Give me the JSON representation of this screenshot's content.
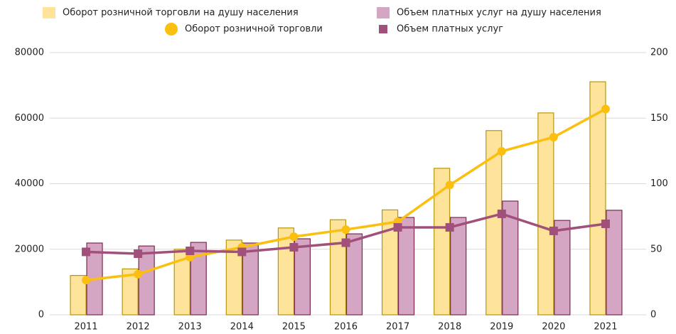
{
  "chart_data": {
    "type": "bar",
    "categories": [
      "2011",
      "2012",
      "2013",
      "2014",
      "2015",
      "2016",
      "2017",
      "2018",
      "2019",
      "2020",
      "2021"
    ],
    "series": [
      {
        "name": "Оборот розничной торговли на душу населения",
        "type": "bar",
        "color": "#fde49a",
        "edge": "#b8960a",
        "values": [
          12000,
          14000,
          20000,
          22800,
          26500,
          29000,
          32000,
          44700,
          56200,
          61600,
          71100
        ]
      },
      {
        "name": "Объем платных услуг на душу населения",
        "type": "bar",
        "color": "#d4a6c4",
        "edge": "#7a2a50",
        "values": [
          21900,
          21000,
          22100,
          21900,
          23200,
          24700,
          29700,
          29700,
          34700,
          28800,
          31900
        ]
      },
      {
        "name": "Оборот розничной торговли",
        "type": "line",
        "marker": "circle",
        "axis": "y2",
        "color": "#fbbf10",
        "values": [
          26.5,
          31,
          44,
          51.5,
          59.6,
          65,
          71,
          99,
          124.7,
          135.5,
          157
        ]
      },
      {
        "name": "Объем платных услуг",
        "type": "line",
        "marker": "square",
        "axis": "y2",
        "color": "#a0507a",
        "values": [
          48,
          46.6,
          48.8,
          48,
          51.5,
          55,
          66.7,
          66.7,
          77,
          64,
          69.4
        ]
      }
    ],
    "ylim": [
      0,
      80000
    ],
    "yticks": [
      0,
      20000,
      40000,
      60000,
      80000
    ],
    "y2lim": [
      0,
      200
    ],
    "y2ticks": [
      0,
      50,
      100,
      150,
      200
    ],
    "grid": true,
    "legend": "top"
  }
}
